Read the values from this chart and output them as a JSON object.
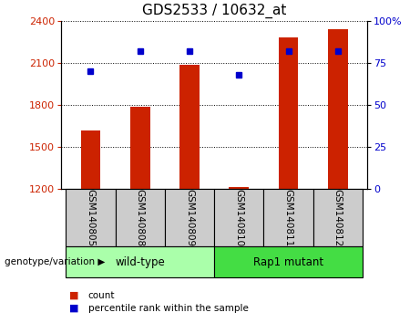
{
  "title": "GDS2533 / 10632_at",
  "samples": [
    "GSM140805",
    "GSM140808",
    "GSM140809",
    "GSM140810",
    "GSM140811",
    "GSM140812"
  ],
  "counts": [
    1620,
    1790,
    2090,
    1215,
    2280,
    2340
  ],
  "percentiles": [
    70,
    82,
    82,
    68,
    82,
    82
  ],
  "ylim_left": [
    1200,
    2400
  ],
  "ylim_right": [
    0,
    100
  ],
  "yticks_left": [
    1200,
    1500,
    1800,
    2100,
    2400
  ],
  "yticks_right": [
    0,
    25,
    50,
    75,
    100
  ],
  "ytick_labels_right": [
    "0",
    "25",
    "50",
    "75",
    "100%"
  ],
  "bar_color": "#cc2200",
  "dot_color": "#0000cc",
  "bar_width": 0.4,
  "groups": [
    {
      "label": "wild-type",
      "indices": [
        0,
        1,
        2
      ],
      "color": "#aaffaa"
    },
    {
      "label": "Rap1 mutant",
      "indices": [
        3,
        4,
        5
      ],
      "color": "#44dd44"
    }
  ],
  "group_label_prefix": "genotype/variation",
  "legend_count_label": "count",
  "legend_percentile_label": "percentile rank within the sample",
  "title_fontsize": 11,
  "tick_fontsize": 8,
  "grid_color": "#000000",
  "background_color": "#ffffff",
  "plot_area_color": "#ffffff",
  "label_area_color": "#cccccc"
}
